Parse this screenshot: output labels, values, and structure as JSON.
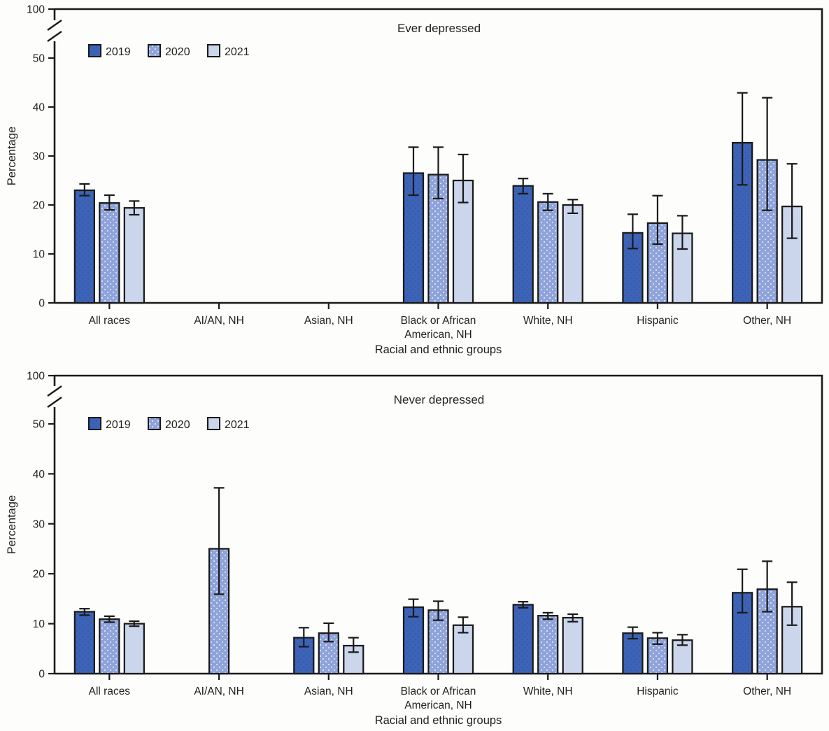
{
  "figure": {
    "background": "#FDFDFC",
    "axis_color": "#1A1A1A",
    "text_color": "#231F20"
  },
  "legend": {
    "items": [
      {
        "label": "2019",
        "color": "#3D63B6"
      },
      {
        "label": "2020",
        "color": "#8FA3DB"
      },
      {
        "label": "2021",
        "color": "#CBD6ED"
      }
    ],
    "position": "top-left-inside-plot"
  },
  "chart_data": [
    {
      "type": "bar",
      "title": "Ever depressed",
      "ylabel": "Percentage",
      "xlabel": "Racial and ethnic groups",
      "yticks": [
        0,
        10,
        20,
        30,
        40,
        50
      ],
      "ytick_top": 100,
      "axis_break": true,
      "ylim_displayed": [
        0,
        55
      ],
      "grid": false,
      "categories": [
        "All races",
        "AI/AN, NH",
        "Asian, NH",
        "Black or African American, NH",
        "White, NH",
        "Hispanic",
        "Other, NH"
      ],
      "category_lines": [
        [
          "All races"
        ],
        [
          "AI/AN, NH"
        ],
        [
          "Asian, NH"
        ],
        [
          "Black or African",
          "American, NH"
        ],
        [
          "White, NH"
        ],
        [
          "Hispanic"
        ],
        [
          "Other, NH"
        ]
      ],
      "series": [
        {
          "name": "2019",
          "values": [
            23.0,
            null,
            null,
            26.5,
            23.9,
            14.3,
            32.7
          ],
          "ci_low": [
            21.9,
            null,
            null,
            22.0,
            22.3,
            11.1,
            24.1
          ],
          "ci_high": [
            24.3,
            null,
            null,
            31.8,
            25.4,
            18.1,
            42.9
          ]
        },
        {
          "name": "2020",
          "values": [
            20.4,
            null,
            null,
            26.2,
            20.6,
            16.3,
            29.2
          ],
          "ci_low": [
            19.0,
            null,
            null,
            21.3,
            18.9,
            12.0,
            18.9
          ],
          "ci_high": [
            22.0,
            null,
            null,
            31.8,
            22.3,
            21.9,
            41.9
          ]
        },
        {
          "name": "2021",
          "values": [
            19.4,
            null,
            null,
            25.0,
            20.0,
            14.2,
            19.7
          ],
          "ci_low": [
            18.0,
            null,
            null,
            20.5,
            18.3,
            11.0,
            13.2
          ],
          "ci_high": [
            20.8,
            null,
            null,
            30.3,
            21.1,
            17.8,
            28.4
          ]
        }
      ]
    },
    {
      "type": "bar",
      "title": "Never depressed",
      "ylabel": "Percentage",
      "xlabel": "Racial and ethnic groups",
      "yticks": [
        0,
        10,
        20,
        30,
        40,
        50
      ],
      "ytick_top": 100,
      "axis_break": true,
      "ylim_displayed": [
        0,
        55
      ],
      "grid": false,
      "categories": [
        "All races",
        "AI/AN, NH",
        "Asian, NH",
        "Black or African American, NH",
        "White, NH",
        "Hispanic",
        "Other, NH"
      ],
      "category_lines": [
        [
          "All races"
        ],
        [
          "AI/AN, NH"
        ],
        [
          "Asian, NH"
        ],
        [
          "Black or African",
          "American, NH"
        ],
        [
          "White, NH"
        ],
        [
          "Hispanic"
        ],
        [
          "Other, NH"
        ]
      ],
      "series": [
        {
          "name": "2019",
          "values": [
            12.4,
            null,
            7.2,
            13.3,
            13.8,
            8.1,
            16.2
          ],
          "ci_low": [
            11.7,
            null,
            5.4,
            11.4,
            13.2,
            7.0,
            12.2
          ],
          "ci_high": [
            13.0,
            null,
            9.2,
            14.9,
            14.4,
            9.3,
            20.9
          ]
        },
        {
          "name": "2020",
          "values": [
            10.9,
            25.0,
            8.1,
            12.7,
            11.6,
            7.1,
            16.9
          ],
          "ci_low": [
            10.3,
            15.9,
            6.4,
            10.7,
            10.9,
            5.9,
            12.4
          ],
          "ci_high": [
            11.5,
            37.2,
            10.1,
            14.5,
            12.2,
            8.2,
            22.5
          ]
        },
        {
          "name": "2021",
          "values": [
            10.0,
            null,
            5.6,
            9.7,
            11.2,
            6.7,
            13.4
          ],
          "ci_low": [
            9.5,
            null,
            4.3,
            8.2,
            10.4,
            5.7,
            9.7
          ],
          "ci_high": [
            10.5,
            null,
            7.2,
            11.3,
            11.9,
            7.8,
            18.3
          ]
        }
      ]
    }
  ]
}
